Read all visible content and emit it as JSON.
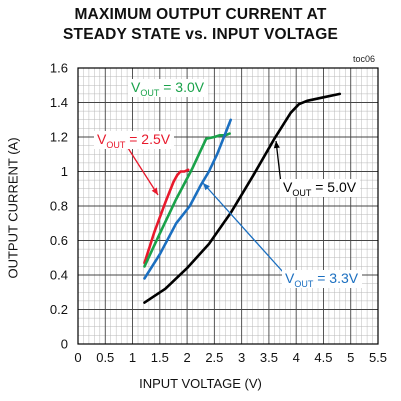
{
  "chart_data": {
    "type": "line",
    "title_line1": "MAXIMUM OUTPUT CURRENT AT",
    "title_line2": "STEADY STATE vs. INPUT VOLTAGE",
    "figure_id": "toc06",
    "xlabel": "INPUT VOLTAGE (V)",
    "ylabel": "OUTPUT CURRENT (A)",
    "xlim": [
      0,
      5.5
    ],
    "ylim": [
      0,
      1.6
    ],
    "x_ticks": [
      "0",
      "0.5",
      "1",
      "1.5",
      "2",
      "2.5",
      "3",
      "3.5",
      "4",
      "4.5",
      "5",
      "5.5"
    ],
    "y_ticks": [
      "0",
      "0.2",
      "0.4",
      "0.6",
      "0.8",
      "1",
      "1.2",
      "1.4",
      "1.6"
    ],
    "grid": true,
    "series": [
      {
        "name": "VOUT = 2.5V",
        "label_main": "V",
        "label_sub": "OUT",
        "label_rest": " = 2.5V",
        "color": "#e8192c",
        "x": [
          1.22,
          1.4,
          1.6,
          1.75,
          1.82,
          1.88,
          1.95,
          2.02
        ],
        "y": [
          0.47,
          0.65,
          0.82,
          0.94,
          0.98,
          1.0,
          1.0,
          1.01
        ]
      },
      {
        "name": "VOUT = 3.0V",
        "label_main": "V",
        "label_sub": "OUT",
        "label_rest": " = 3.0V",
        "color": "#1aa24a",
        "x": [
          1.22,
          1.5,
          1.8,
          2.1,
          2.35,
          2.5,
          2.6,
          2.7,
          2.78
        ],
        "y": [
          0.45,
          0.64,
          0.84,
          1.02,
          1.19,
          1.2,
          1.21,
          1.21,
          1.22
        ]
      },
      {
        "name": "VOUT = 3.3V",
        "label_main": "V",
        "label_sub": "OUT",
        "label_rest": " = 3.3V",
        "color": "#1b6fc0",
        "x": [
          1.22,
          1.5,
          1.8,
          2.05,
          2.25,
          2.4,
          2.55,
          2.7,
          2.8
        ],
        "y": [
          0.38,
          0.52,
          0.7,
          0.8,
          0.92,
          1.0,
          1.1,
          1.22,
          1.3
        ]
      },
      {
        "name": "VOUT = 5.0V",
        "label_main": "V",
        "label_sub": "OUT",
        "label_rest": " = 5.0V",
        "color": "#000000",
        "x": [
          1.22,
          1.6,
          2.0,
          2.4,
          2.8,
          3.2,
          3.6,
          3.9,
          4.05,
          4.2,
          4.5,
          4.8
        ],
        "y": [
          0.24,
          0.32,
          0.44,
          0.58,
          0.76,
          0.97,
          1.19,
          1.34,
          1.39,
          1.41,
          1.43,
          1.45
        ]
      }
    ]
  }
}
